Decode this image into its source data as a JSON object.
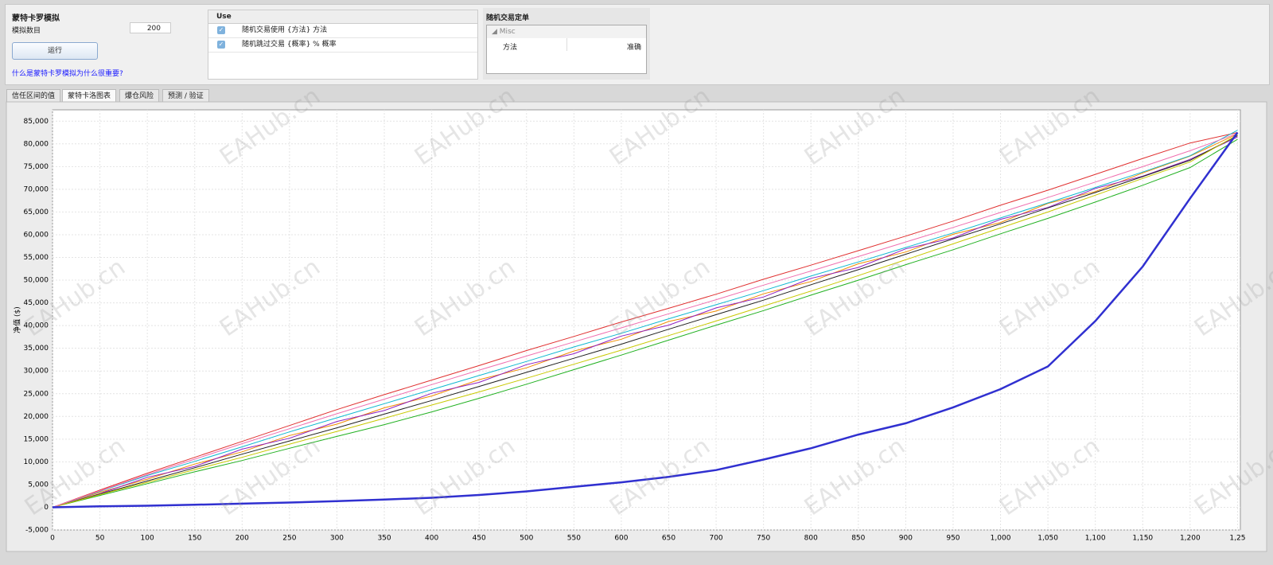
{
  "header": {
    "title": "蒙特卡罗模拟",
    "count_label": "模拟数目",
    "count_value": "200",
    "run_button": "运行",
    "help_link": "什么是蒙特卡罗模拟为什么很重要?"
  },
  "options_table": {
    "header": "Use",
    "rows": [
      "随机交易使用 {方法} 方法",
      "随机跳过交易 {概率} % 概率"
    ]
  },
  "properties": {
    "title": "随机交易定单",
    "group": "Misc",
    "rows": [
      [
        "方法",
        "准确"
      ]
    ]
  },
  "tabs": [
    "信任区间的值",
    "蒙特卡洛图表",
    "爆仓风险",
    "预测 / 验证"
  ],
  "watermark": "EAHub.cn",
  "chart_data": {
    "type": "line",
    "y_label": "净值 ($)",
    "x": [
      0,
      50,
      100,
      150,
      200,
      250,
      300,
      350,
      400,
      450,
      500,
      550,
      600,
      650,
      700,
      750,
      800,
      850,
      900,
      950,
      1000,
      1050,
      1100,
      1150,
      1200,
      1250
    ],
    "xlim": [
      0,
      1253
    ],
    "ylim": [
      -5000,
      87500
    ],
    "grid": true,
    "xticks": [
      0,
      50,
      100,
      150,
      200,
      250,
      300,
      350,
      400,
      450,
      500,
      550,
      600,
      650,
      700,
      750,
      800,
      850,
      900,
      950,
      {
        "value": 1000,
        "label": "1,000"
      },
      {
        "value": 1050,
        "label": "1,050"
      },
      {
        "value": 1100,
        "label": "1,100"
      },
      {
        "value": 1150,
        "label": "1,150"
      },
      {
        "value": 1200,
        "label": "1,200"
      },
      {
        "value": 1250,
        "label": "1,25"
      }
    ],
    "yticks": [
      {
        "value": -5000,
        "label": "-5,000"
      },
      0,
      {
        "value": 5000,
        "label": "5,000"
      },
      {
        "value": 10000,
        "label": "10,000"
      },
      {
        "value": 15000,
        "label": "15,000"
      },
      {
        "value": 20000,
        "label": "20,000"
      },
      {
        "value": 25000,
        "label": "25,000"
      },
      {
        "value": 30000,
        "label": "30,000"
      },
      {
        "value": 35000,
        "label": "35,000"
      },
      {
        "value": 40000,
        "label": "40,000"
      },
      {
        "value": 45000,
        "label": "45,000"
      },
      {
        "value": 50000,
        "label": "50,000"
      },
      {
        "value": 55000,
        "label": "55,000"
      },
      {
        "value": 60000,
        "label": "60,000"
      },
      {
        "value": 65000,
        "label": "65,000"
      },
      {
        "value": 70000,
        "label": "70,000"
      },
      {
        "value": 75000,
        "label": "75,000"
      },
      {
        "value": 80000,
        "label": "80,000"
      },
      {
        "value": 85000,
        "label": "85,000"
      }
    ],
    "series": [
      {
        "color": "#e03030",
        "values": [
          0,
          3800,
          7500,
          11000,
          14500,
          18000,
          21500,
          24800,
          28000,
          31200,
          34500,
          37600,
          40800,
          43800,
          46900,
          50200,
          53300,
          56500,
          59700,
          63000,
          66500,
          69800,
          73300,
          76800,
          80200,
          82500
        ]
      },
      {
        "color": "#20b020",
        "values": [
          0,
          2600,
          5200,
          7800,
          10300,
          13000,
          15600,
          18200,
          21000,
          24000,
          27100,
          30300,
          33500,
          36800,
          40100,
          43300,
          46700,
          50000,
          53400,
          56700,
          60200,
          63600,
          67200,
          70900,
          74800,
          81000
        ]
      },
      {
        "color": "#f08c00",
        "values": [
          0,
          3300,
          6200,
          9500,
          12200,
          15800,
          18300,
          21900,
          24500,
          28100,
          30700,
          34400,
          37000,
          40900,
          43200,
          47000,
          49700,
          53600,
          56200,
          60100,
          62700,
          66900,
          69500,
          73600,
          77300,
          82200
        ]
      },
      {
        "color": "#9020c0",
        "values": [
          0,
          3000,
          6600,
          9000,
          12800,
          15200,
          18900,
          21300,
          25100,
          27500,
          31400,
          33800,
          37700,
          40100,
          43900,
          46300,
          50400,
          52800,
          56900,
          59300,
          63400,
          66000,
          70200,
          72900,
          76600,
          81500
        ]
      },
      {
        "color": "#10b8d0",
        "values": [
          0,
          3500,
          7000,
          10100,
          13300,
          16600,
          19700,
          22800,
          25900,
          29000,
          32100,
          35300,
          38300,
          41500,
          44600,
          47700,
          50900,
          54000,
          57200,
          60400,
          63700,
          67000,
          70400,
          73800,
          77400,
          83000
        ]
      },
      {
        "color": "#202020",
        "values": [
          0,
          2900,
          5800,
          8700,
          11700,
          14600,
          17500,
          20500,
          23500,
          26600,
          29700,
          32800,
          35900,
          39200,
          42400,
          45600,
          49000,
          52300,
          55700,
          59100,
          62400,
          65900,
          69300,
          72800,
          76400,
          81800
        ]
      },
      {
        "color": "#c8c800",
        "values": [
          0,
          2800,
          5500,
          8300,
          11000,
          13900,
          16700,
          19600,
          22500,
          25400,
          28400,
          31500,
          34600,
          37800,
          41000,
          44300,
          47600,
          51000,
          54500,
          58000,
          61500,
          65000,
          68700,
          72400,
          76000,
          82000
        ]
      },
      {
        "color": "#f070b0",
        "values": [
          0,
          3600,
          7200,
          10600,
          14000,
          17300,
          20600,
          23800,
          27000,
          30200,
          33300,
          36400,
          39500,
          42600,
          45700,
          48900,
          52000,
          55200,
          58400,
          61600,
          64900,
          68200,
          71600,
          75000,
          78500,
          82300
        ]
      },
      {
        "color": "#3030d0",
        "width": 2.5,
        "values": [
          0,
          200,
          350,
          550,
          800,
          1050,
          1350,
          1700,
          2100,
          2700,
          3500,
          4500,
          5500,
          6700,
          8200,
          10500,
          13000,
          16000,
          18500,
          22000,
          26000,
          31000,
          41000,
          53000,
          68000,
          82500
        ]
      }
    ]
  }
}
